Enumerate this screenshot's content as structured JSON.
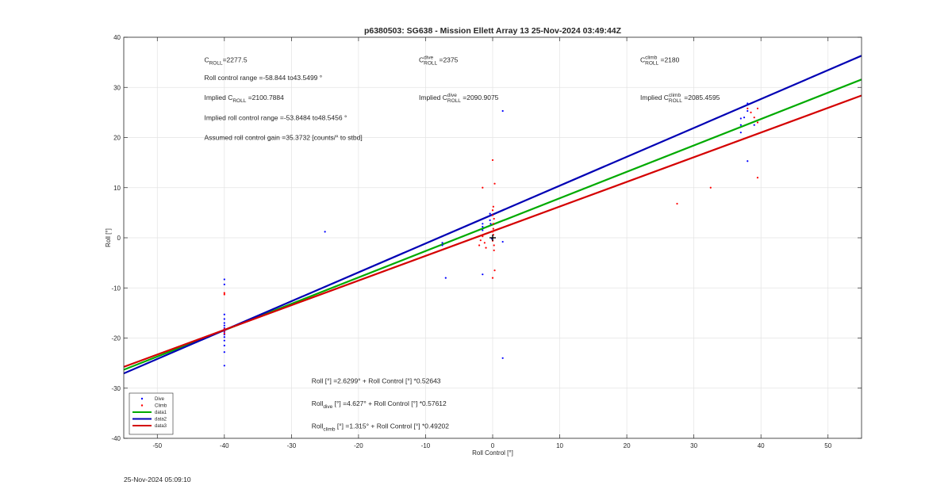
{
  "chart_data": {
    "type": "scatter",
    "title": "p6380503: SG638 - Mission Ellett Array 13 25-Nov-2024 03:49:44Z",
    "xlabel": "Roll Control [°]",
    "ylabel": "Roll [°]",
    "xlim": [
      -55,
      55
    ],
    "ylim": [
      -40,
      40
    ],
    "xticks": [
      -50,
      -40,
      -30,
      -20,
      -10,
      0,
      10,
      20,
      30,
      40,
      50
    ],
    "yticks": [
      -40,
      -30,
      -20,
      -10,
      0,
      10,
      20,
      30,
      40
    ],
    "grid": true,
    "legend_position": "bottom-left",
    "series": [
      {
        "name": "Dive",
        "kind": "points",
        "color": "#0000ff",
        "points": [
          [
            -40,
            -8.3
          ],
          [
            -40,
            -9.3
          ],
          [
            -40,
            -15.3
          ],
          [
            -40,
            -16.2
          ],
          [
            -40,
            -17
          ],
          [
            -40,
            -17.5
          ],
          [
            -40,
            -18
          ],
          [
            -40,
            -18.4
          ],
          [
            -40,
            -18.8
          ],
          [
            -40,
            -19.3
          ],
          [
            -40,
            -19.8
          ],
          [
            -40,
            -20.5
          ],
          [
            -40,
            -21.5
          ],
          [
            -40,
            -22.8
          ],
          [
            -40,
            -25.5
          ],
          [
            -25,
            1.2
          ],
          [
            -7,
            -8
          ],
          [
            -7.5,
            -1
          ],
          [
            -7.5,
            -1.5
          ],
          [
            -1.5,
            -7.3
          ],
          [
            -1.5,
            1.5
          ],
          [
            -1.5,
            2.2
          ],
          [
            -1.5,
            2.8
          ],
          [
            -0.4,
            4.8
          ],
          [
            -0.4,
            3.5
          ],
          [
            -0.3,
            2.8
          ],
          [
            1.5,
            25.3
          ],
          [
            1.5,
            -0.8
          ],
          [
            1.5,
            -24
          ],
          [
            38,
            26.8
          ],
          [
            38,
            25.3
          ],
          [
            37.5,
            24
          ],
          [
            37,
            23.8
          ],
          [
            37,
            22.5
          ],
          [
            37,
            21
          ],
          [
            38,
            15.3
          ],
          [
            39,
            22.5
          ],
          [
            -0.1,
            -0.2
          ]
        ]
      },
      {
        "name": "Climb",
        "kind": "points",
        "color": "#ff0000",
        "points": [
          [
            -40,
            -11
          ],
          [
            -40,
            -11.3
          ],
          [
            -40,
            -18.2
          ],
          [
            -40,
            -18.6
          ],
          [
            -40,
            -19.1
          ],
          [
            -1.5,
            10
          ],
          [
            -2,
            -1.5
          ],
          [
            -1.8,
            -0.5
          ],
          [
            -1.5,
            0.3
          ],
          [
            -1.2,
            -1
          ],
          [
            -1,
            -2
          ],
          [
            0,
            15.5
          ],
          [
            0.3,
            10.8
          ],
          [
            0.1,
            6.2
          ],
          [
            0,
            5.5
          ],
          [
            0,
            4.5
          ],
          [
            0.2,
            3.8
          ],
          [
            0.1,
            2.8
          ],
          [
            0.1,
            1.8
          ],
          [
            0,
            1.2
          ],
          [
            0.1,
            0.6
          ],
          [
            0,
            -0.6
          ],
          [
            0.2,
            -1.5
          ],
          [
            0.2,
            -2.5
          ],
          [
            0.3,
            -6.5
          ],
          [
            0,
            -8
          ],
          [
            27.5,
            6.8
          ],
          [
            32.5,
            10
          ],
          [
            38,
            25.8
          ],
          [
            38.5,
            25
          ],
          [
            39.5,
            25.8
          ],
          [
            39,
            24
          ],
          [
            39.5,
            23
          ],
          [
            39.5,
            12
          ]
        ]
      },
      {
        "name": "data1",
        "kind": "line",
        "color": "#00aa00",
        "points": [
          [
            -55,
            -26.33
          ],
          [
            55,
            31.58
          ]
        ]
      },
      {
        "name": "data2",
        "kind": "line",
        "color": "#0000b4",
        "points": [
          [
            -55,
            -27.06
          ],
          [
            55,
            36.32
          ]
        ]
      },
      {
        "name": "data3",
        "kind": "line",
        "color": "#d40000",
        "points": [
          [
            -55,
            -25.75
          ],
          [
            55,
            28.38
          ]
        ]
      }
    ],
    "marker": {
      "x": 0,
      "y": 0,
      "color": "#000000",
      "symbol": "+"
    },
    "annotations": [
      {
        "parts": [
          {
            "t": "C"
          },
          {
            "t": "ROLL",
            "sub": true
          },
          {
            "t": "=2277.5"
          }
        ],
        "x": -43,
        "y": 35
      },
      {
        "parts": [
          {
            "t": "Roll control range =-58.844 to43.5499 °"
          }
        ],
        "x": -43,
        "y": 31.5
      },
      {
        "parts": [
          {
            "t": "Implied C"
          },
          {
            "t": "ROLL",
            "sub": true
          },
          {
            "t": " =2100.7884"
          }
        ],
        "x": -43,
        "y": 27.5
      },
      {
        "parts": [
          {
            "t": "Implied roll control range =-53.8484 to48.5456 °"
          }
        ],
        "x": -43,
        "y": 23.5
      },
      {
        "parts": [
          {
            "t": "Assumed roll control gain =35.3732 [counts/° to stbd]"
          }
        ],
        "x": -43,
        "y": 19.5
      },
      {
        "parts": [
          {
            "t": "C"
          },
          {
            "t": "dive",
            "sup": true
          },
          {
            "t": "ROLL",
            "sub": true
          },
          {
            "t": " =2375"
          }
        ],
        "x": -11,
        "y": 35
      },
      {
        "parts": [
          {
            "t": "Implied C"
          },
          {
            "t": "dive",
            "sup": true
          },
          {
            "t": "ROLL",
            "sub": true
          },
          {
            "t": " =2090.9075"
          }
        ],
        "x": -11,
        "y": 27.5
      },
      {
        "parts": [
          {
            "t": "C"
          },
          {
            "t": "climb",
            "sup": true
          },
          {
            "t": "ROLL",
            "sub": true
          },
          {
            "t": " =2180"
          }
        ],
        "x": 22,
        "y": 35
      },
      {
        "parts": [
          {
            "t": "Implied C"
          },
          {
            "t": "climb",
            "sup": true
          },
          {
            "t": "ROLL",
            "sub": true
          },
          {
            "t": " =2085.4595"
          }
        ],
        "x": 22,
        "y": 27.5
      },
      {
        "parts": [
          {
            "t": "Roll [°] =2.6299° + Roll Control [°] *0.52643"
          }
        ],
        "x": -27,
        "y": -29
      },
      {
        "parts": [
          {
            "t": "Roll"
          },
          {
            "t": "dive",
            "sub": true
          },
          {
            "t": " [°] =4.627° + Roll Control [°] *0.57612"
          }
        ],
        "x": -27,
        "y": -33.5
      },
      {
        "parts": [
          {
            "t": "Roll"
          },
          {
            "t": "climb",
            "sub": true
          },
          {
            "t": " [°] =1.315° + Roll Control [°] *0.49202"
          }
        ],
        "x": -27,
        "y": -38
      }
    ]
  },
  "footer": {
    "timestamp": "25-Nov-2024 05:09:10"
  }
}
